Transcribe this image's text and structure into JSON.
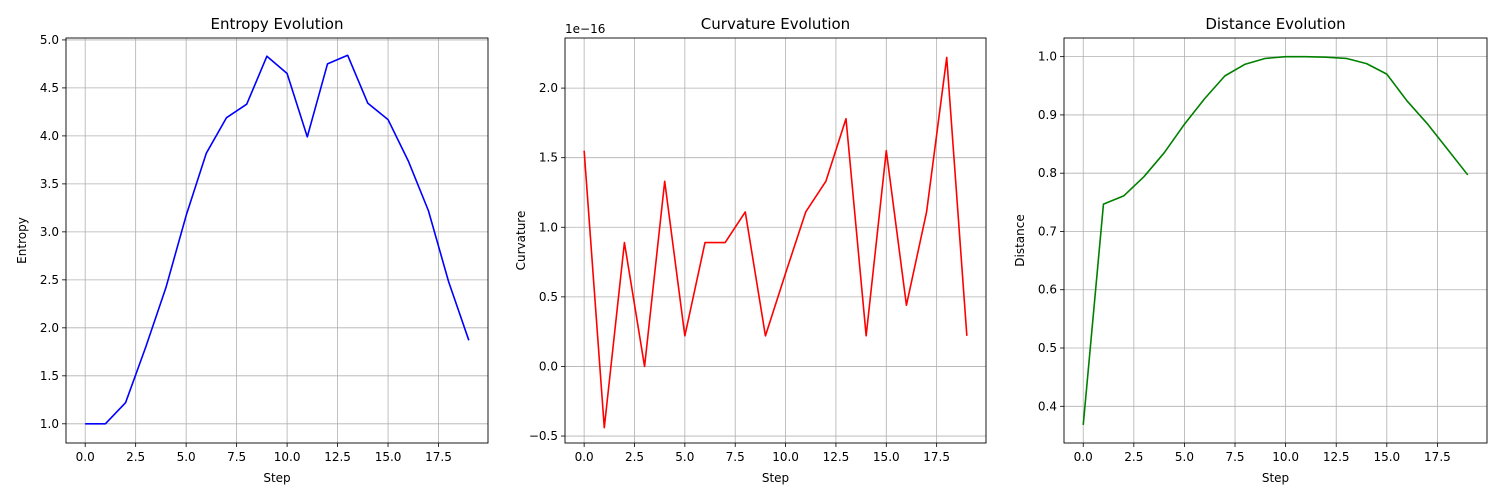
{
  "chart_data": [
    {
      "type": "line",
      "title": "Entropy Evolution",
      "xlabel": "Step",
      "ylabel": "Entropy",
      "color": "#0000ff",
      "grid": true,
      "xlim": [
        -0.95,
        19.95
      ],
      "ylim": [
        0.8,
        5.02
      ],
      "xticks": [
        0,
        2.5,
        5,
        7.5,
        10,
        12.5,
        15,
        17.5
      ],
      "xtick_labels": [
        "0.0",
        "2.5",
        "5.0",
        "7.5",
        "10.0",
        "12.5",
        "15.0",
        "17.5"
      ],
      "yticks": [
        1,
        1.5,
        2,
        2.5,
        3,
        3.5,
        4,
        4.5,
        5
      ],
      "ytick_labels": [
        "1.0",
        "1.5",
        "2.0",
        "2.5",
        "3.0",
        "3.5",
        "4.0",
        "4.5",
        "5.0"
      ],
      "offset_text": "",
      "x": [
        0,
        1,
        2,
        3,
        4,
        5,
        6,
        7,
        8,
        9,
        10,
        11,
        12,
        13,
        14,
        15,
        16,
        17,
        18,
        19
      ],
      "y": [
        1.0,
        1.0,
        1.22,
        1.8,
        2.42,
        3.17,
        3.82,
        4.19,
        4.33,
        4.83,
        4.65,
        3.99,
        4.75,
        4.84,
        4.34,
        4.17,
        3.74,
        3.22,
        2.48,
        1.87
      ]
    },
    {
      "type": "line",
      "title": "Curvature Evolution",
      "xlabel": "Step",
      "ylabel": "Curvature",
      "color": "#ff0000",
      "grid": true,
      "xlim": [
        -0.95,
        19.95
      ],
      "ylim": [
        -0.55,
        2.36
      ],
      "xticks": [
        0,
        2.5,
        5,
        7.5,
        10,
        12.5,
        15,
        17.5
      ],
      "xtick_labels": [
        "0.0",
        "2.5",
        "5.0",
        "7.5",
        "10.0",
        "12.5",
        "15.0",
        "17.5"
      ],
      "yticks": [
        -0.5,
        0,
        0.5,
        1,
        1.5,
        2
      ],
      "ytick_labels": [
        "−0.5",
        "0.0",
        "0.5",
        "1.0",
        "1.5",
        "2.0"
      ],
      "offset_text": "1e−16",
      "x": [
        0,
        1,
        2,
        3,
        4,
        5,
        6,
        7,
        8,
        9,
        10,
        11,
        12,
        13,
        14,
        15,
        16,
        17,
        18,
        19
      ],
      "y": [
        1.55,
        -0.44,
        0.89,
        0.0,
        1.33,
        0.22,
        0.89,
        0.89,
        1.11,
        0.22,
        0.67,
        1.11,
        1.33,
        1.78,
        0.22,
        1.55,
        0.44,
        1.11,
        2.22,
        0.22
      ]
    },
    {
      "type": "line",
      "title": "Distance Evolution",
      "xlabel": "Step",
      "ylabel": "Distance",
      "color": "#008000",
      "grid": true,
      "xlim": [
        -0.95,
        19.95
      ],
      "ylim": [
        0.337,
        1.032
      ],
      "xticks": [
        0,
        2.5,
        5,
        7.5,
        10,
        12.5,
        15,
        17.5
      ],
      "xtick_labels": [
        "0.0",
        "2.5",
        "5.0",
        "7.5",
        "10.0",
        "12.5",
        "15.0",
        "17.5"
      ],
      "yticks": [
        0.4,
        0.5,
        0.6,
        0.7,
        0.8,
        0.9,
        1.0
      ],
      "ytick_labels": [
        "0.4",
        "0.5",
        "0.6",
        "0.7",
        "0.8",
        "0.9",
        "1.0"
      ],
      "offset_text": "",
      "x": [
        0,
        1,
        2,
        3,
        4,
        5,
        6,
        7,
        8,
        9,
        10,
        11,
        12,
        13,
        14,
        15,
        16,
        17,
        18,
        19
      ],
      "y": [
        0.368,
        0.747,
        0.761,
        0.794,
        0.835,
        0.884,
        0.928,
        0.967,
        0.987,
        0.997,
        1.0,
        1.0,
        0.999,
        0.997,
        0.988,
        0.97,
        0.924,
        0.885,
        0.841,
        0.797
      ]
    }
  ]
}
